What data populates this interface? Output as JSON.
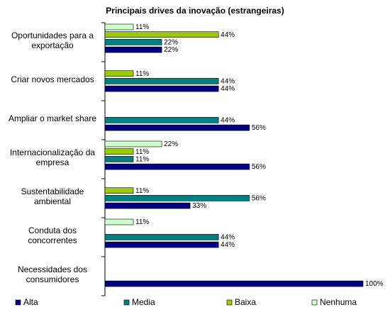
{
  "chart_data": {
    "type": "bar",
    "orientation": "horizontal",
    "title": "Principais drives da inovação (estrangeiras)",
    "categories": [
      "Oportunidades para a exportação",
      "Criar novos mercados",
      "Ampliar o market share",
      "Internacionalização da empresa",
      "Sustentabilidade ambiental",
      "Conduta dos concorrentes",
      "Necessidades dos consumidores"
    ],
    "xlim": [
      0,
      100
    ],
    "series": [
      {
        "name": "Alta",
        "color": "#000080",
        "values": [
          22,
          44,
          56,
          56,
          33,
          44,
          100
        ],
        "value_labels": [
          "22%",
          "44%",
          "56%",
          "56%",
          "33%",
          "44%",
          "100%"
        ]
      },
      {
        "name": "Media",
        "color": "#008080",
        "values": [
          22,
          44,
          44,
          11,
          56,
          44,
          null
        ],
        "value_labels": [
          "22%",
          "44%",
          "44%",
          "11%",
          "56%",
          "44%",
          null
        ]
      },
      {
        "name": "Baixa",
        "color": "#99cc00",
        "values": [
          44,
          11,
          null,
          11,
          11,
          null,
          null
        ],
        "value_labels": [
          "44%",
          "11%",
          null,
          "11%",
          "11%",
          null,
          null
        ]
      },
      {
        "name": "Nenhuma",
        "color": "#ccffcc",
        "values": [
          11,
          null,
          null,
          22,
          null,
          11,
          null
        ],
        "value_labels": [
          "11%",
          null,
          null,
          "22%",
          null,
          "11%",
          null
        ]
      }
    ],
    "legend": "bottom"
  }
}
